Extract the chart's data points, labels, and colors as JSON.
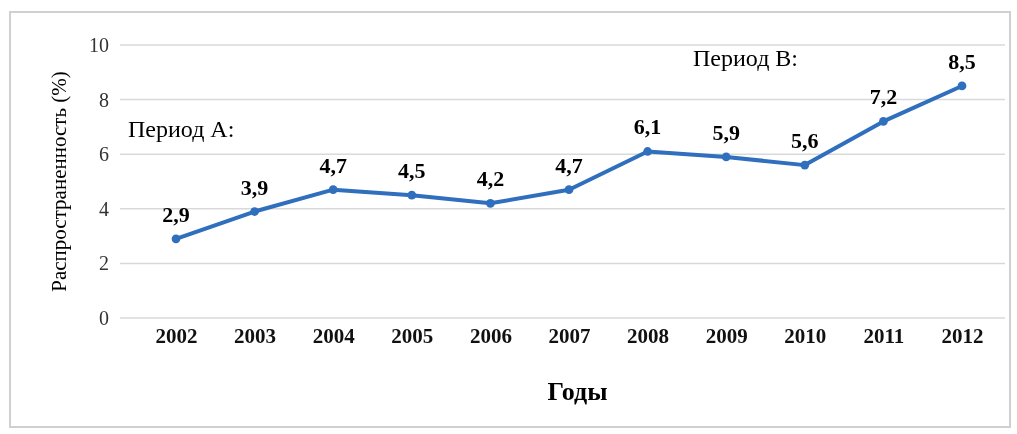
{
  "chart_data": {
    "type": "line",
    "xlabel": "Годы",
    "ylabel": "Распространенность (%)",
    "categories": [
      "2002",
      "2003",
      "2004",
      "2005",
      "2006",
      "2007",
      "2008",
      "2009",
      "2010",
      "2011",
      "2012"
    ],
    "series": [
      {
        "color": "#2f6fbd",
        "values": [
          2.9,
          3.9,
          4.7,
          4.5,
          4.2,
          4.7,
          6.1,
          5.9,
          5.6,
          7.2,
          8.5
        ],
        "value_labels": [
          "2,9",
          "3,9",
          "4,7",
          "4,5",
          "4,2",
          "4,7",
          "6,1",
          "5,9",
          "5,6",
          "7,2",
          "8,5"
        ]
      }
    ],
    "ylim": [
      0,
      10
    ],
    "yticks": [
      0,
      2,
      4,
      6,
      8,
      10
    ],
    "grid": "y",
    "marker": "circle",
    "line_style": "solid",
    "annotations": [
      "Период А:",
      "Период B:"
    ]
  }
}
